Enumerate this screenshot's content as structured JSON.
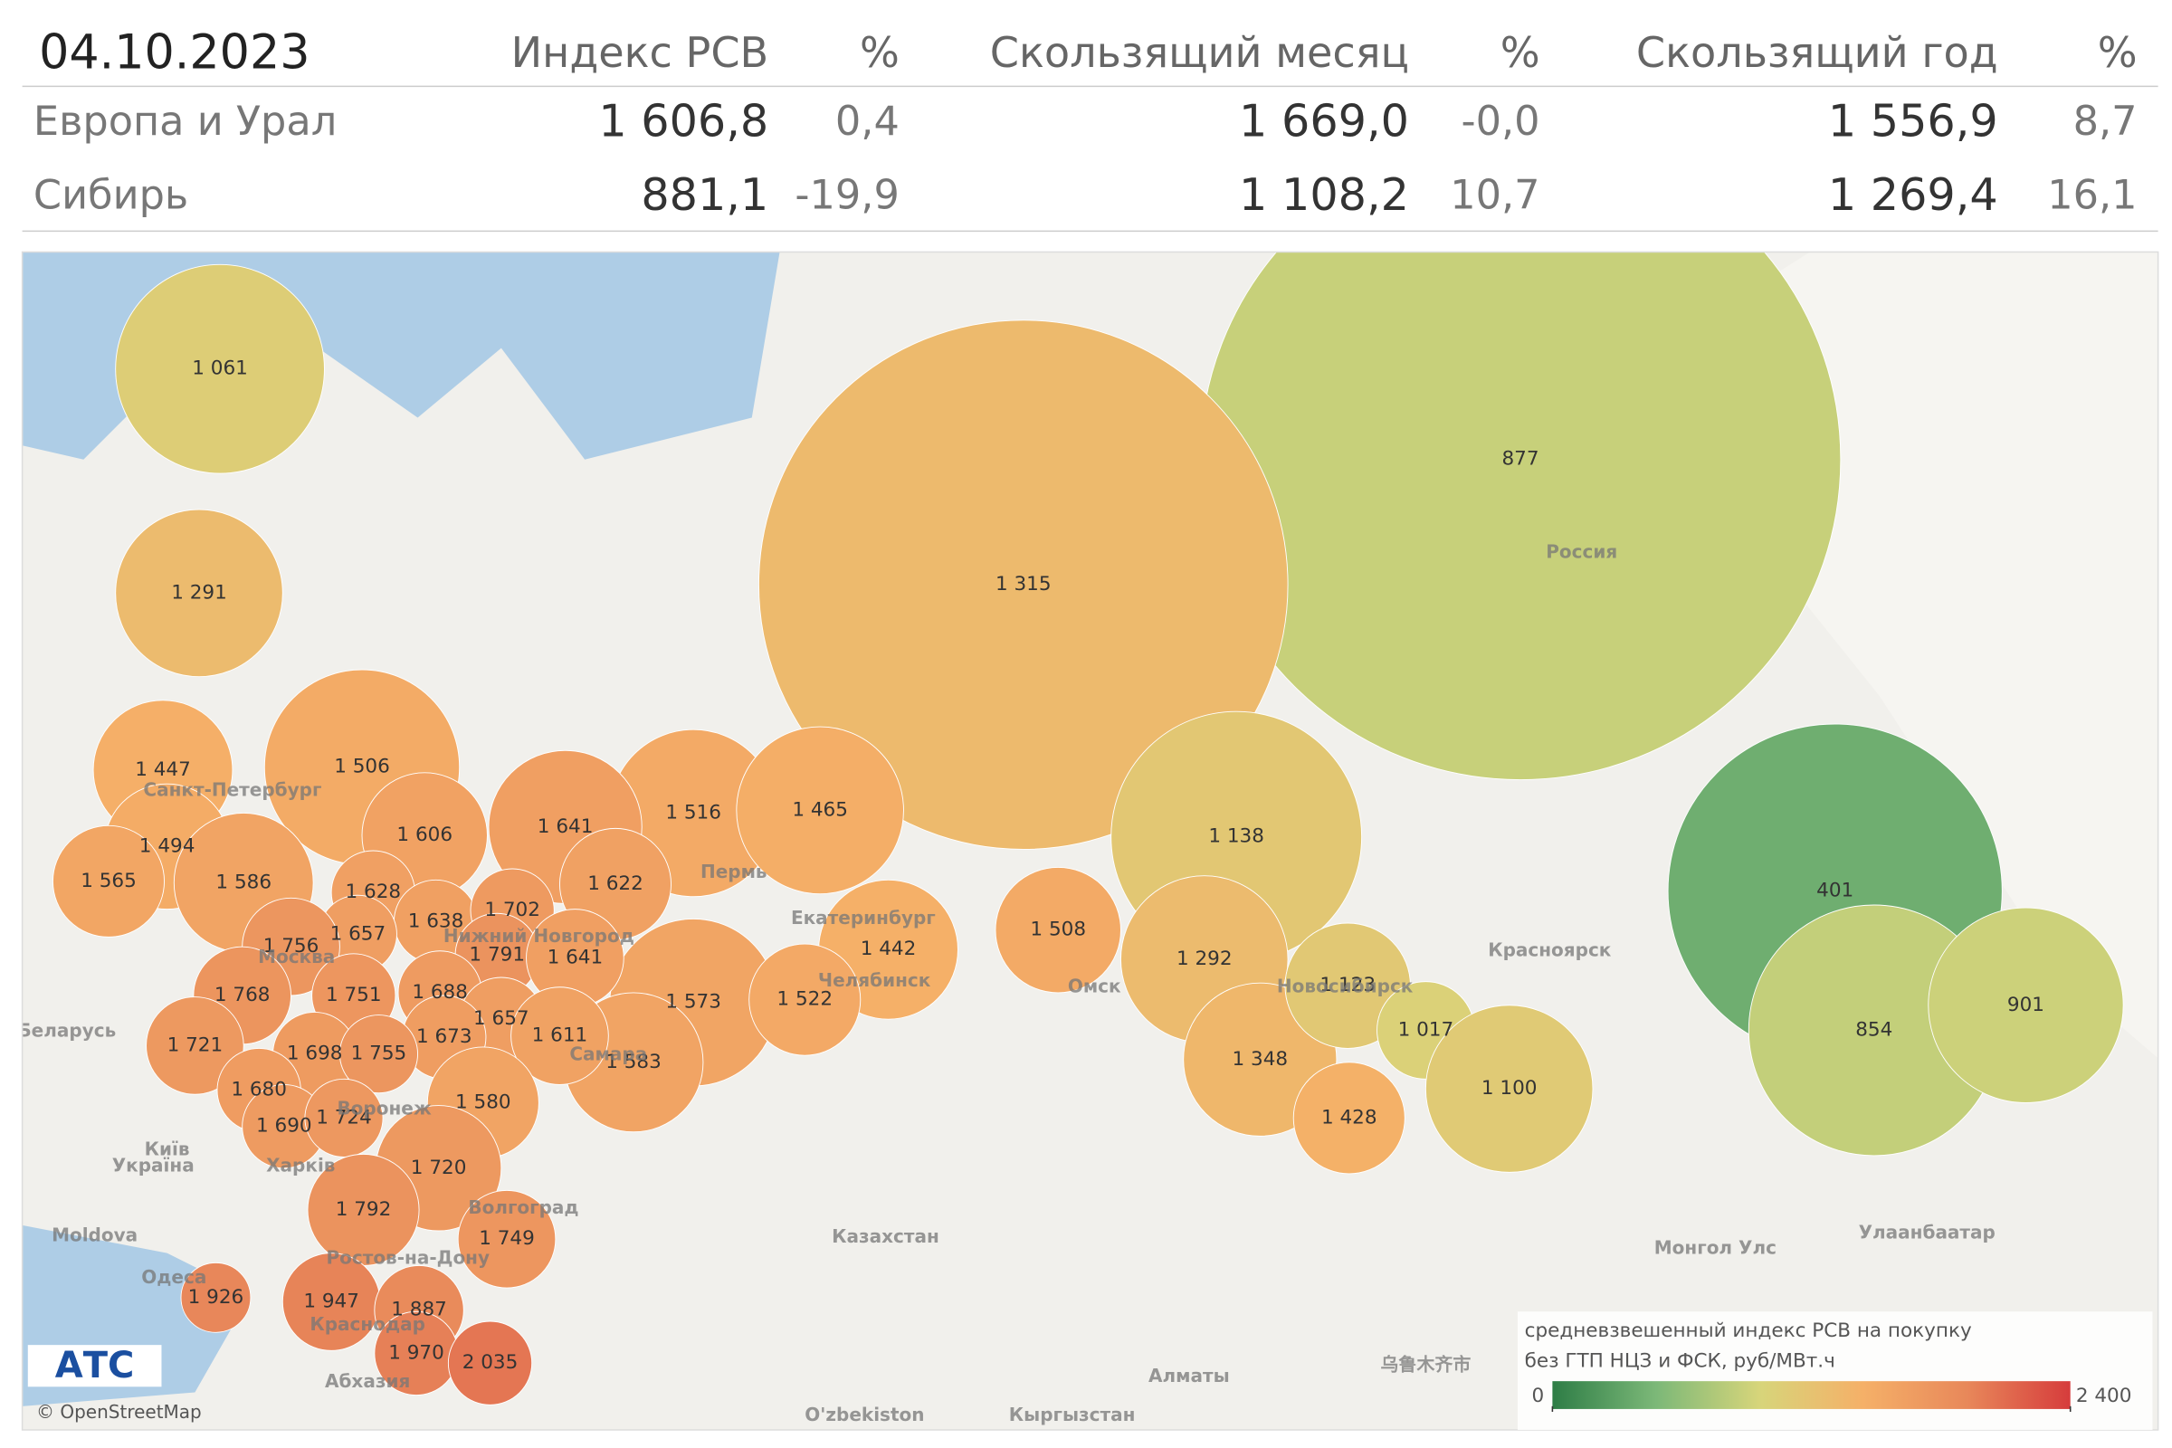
{
  "table": {
    "columns": [
      "04.10.2023",
      "Индекс РСВ",
      "%",
      "Скользящий месяц",
      "%",
      "Скользящий год",
      "%"
    ],
    "rows": [
      [
        "Европа и Урал",
        "1 606,8",
        "0,4",
        "1 669,0",
        "-0,0",
        "1 556,9",
        "8,7"
      ],
      [
        "Сибирь",
        "881,1",
        "-19,9",
        "1 108,2",
        "10,7",
        "1 269,4",
        "16,1"
      ]
    ]
  },
  "regions": [
    {
      "value": 877,
      "label": "877"
    },
    {
      "value": 1315,
      "label": "1 315"
    },
    {
      "value": 401,
      "label": "401"
    },
    {
      "value": 854,
      "label": "854"
    },
    {
      "value": 901,
      "label": "901"
    },
    {
      "value": 1291,
      "label": "1 291"
    },
    {
      "value": 1061,
      "label": "1 061"
    },
    {
      "value": 1138,
      "label": "1 138"
    },
    {
      "value": 1292,
      "label": "1 292"
    },
    {
      "value": 1348,
      "label": "1 348"
    },
    {
      "value": 1123,
      "label": "1 123"
    },
    {
      "value": 1017,
      "label": "1 017"
    },
    {
      "value": 1100,
      "label": "1 100"
    },
    {
      "value": 1428,
      "label": "1 428"
    },
    {
      "value": 1508,
      "label": "1 508"
    },
    {
      "value": 1442,
      "label": "1 442"
    },
    {
      "value": 1516,
      "label": "1 516"
    },
    {
      "value": 1465,
      "label": "1 465"
    },
    {
      "value": 1573,
      "label": "1 573"
    },
    {
      "value": 1522,
      "label": "1 522"
    },
    {
      "value": 1583,
      "label": "1 583"
    },
    {
      "value": 1447,
      "label": "1 447"
    },
    {
      "value": 1506,
      "label": "1 506"
    },
    {
      "value": 1494,
      "label": "1 494"
    },
    {
      "value": 1606,
      "label": "1 606"
    },
    {
      "value": 1641,
      "label": "1 641"
    },
    {
      "value": 1565,
      "label": "1 565"
    },
    {
      "value": 1586,
      "label": "1 586"
    },
    {
      "value": 1628,
      "label": "1 628"
    },
    {
      "value": 1622,
      "label": "1 622"
    },
    {
      "value": 1638,
      "label": "1 638"
    },
    {
      "value": 1702,
      "label": "1 702"
    },
    {
      "value": 1657,
      "label": "1 657"
    },
    {
      "value": 1756,
      "label": "1 756"
    },
    {
      "value": 1791,
      "label": "1 791"
    },
    {
      "value": 1641,
      "label": "1 641"
    },
    {
      "value": 1768,
      "label": "1 768"
    },
    {
      "value": 1751,
      "label": "1 751"
    },
    {
      "value": 1688,
      "label": "1 688"
    },
    {
      "value": 1657,
      "label": "1 657"
    },
    {
      "value": 1721,
      "label": "1 721"
    },
    {
      "value": 1673,
      "label": "1 673"
    },
    {
      "value": 1611,
      "label": "1 611"
    },
    {
      "value": 1698,
      "label": "1 698"
    },
    {
      "value": 1755,
      "label": "1 755"
    },
    {
      "value": 1680,
      "label": "1 680"
    },
    {
      "value": 1580,
      "label": "1 580"
    },
    {
      "value": 1690,
      "label": "1 690"
    },
    {
      "value": 1724,
      "label": "1 724"
    },
    {
      "value": 1720,
      "label": "1 720"
    },
    {
      "value": 1792,
      "label": "1 792"
    },
    {
      "value": 1749,
      "label": "1 749"
    },
    {
      "value": 1926,
      "label": "1 926"
    },
    {
      "value": 1947,
      "label": "1 947"
    },
    {
      "value": 1887,
      "label": "1 887"
    },
    {
      "value": 1970,
      "label": "1 970"
    },
    {
      "value": 2035,
      "label": "2 035"
    }
  ],
  "places": [
    "Россия",
    "Санкт-Петербург",
    "Пермь",
    "Екатеринбург",
    "Челябинск",
    "Омск",
    "Новосибирск",
    "Красноярск",
    "Нижний Новгород",
    "Москва",
    "Самара",
    "Воронеж",
    "Волгоград",
    "Ростов-на-Дону",
    "Краснодар",
    "Казахстан",
    "Монгол Улс",
    "Улаанбаатар",
    "Беларусь",
    "Київ",
    "Україна",
    "Харків",
    "Moldova",
    "Одеса",
    "Абхазия",
    "Алматы",
    "Кыргызстан",
    "O'zbekiston",
    "乌鲁木齐市"
  ],
  "attribution": "© OpenStreetMap",
  "logo": "АТС",
  "legend": {
    "title": [
      "средневзвешенный индекс РСВ на покупку",
      "без ГТП НЦЗ и ФСК, руб/МВт.ч"
    ],
    "lim": [
      0,
      2400
    ],
    "ticks": [
      0,
      {
        "value": 2400,
        "label": "2 400"
      }
    ],
    "colors": [
      "#2e7d46",
      "#7cb878",
      "#d7d57a",
      "#f5b068",
      "#e8885a",
      "#d63c3c"
    ]
  }
}
